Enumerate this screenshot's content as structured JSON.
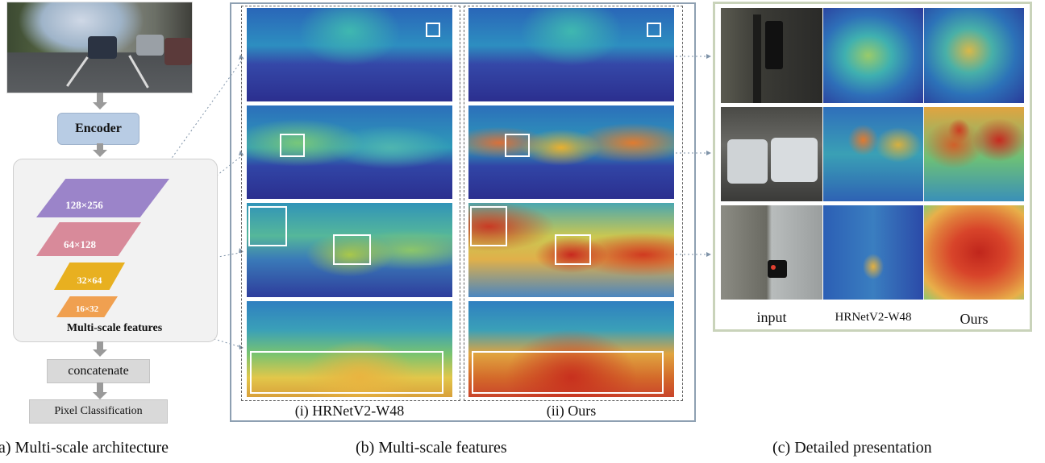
{
  "architecture": {
    "encoder_label": "Encoder",
    "feature_scales": [
      "128×256",
      "64×128",
      "32×64",
      "16×32"
    ],
    "multi_scale_label": "Multi-scale features",
    "concatenate_label": "concatenate",
    "pixel_classification_label": "Pixel Classification",
    "caption": "a) Multi-scale architecture"
  },
  "features": {
    "column_labels": [
      "(i) HRNetV2-W48",
      "(ii) Ours"
    ],
    "caption": "(b) Multi-scale features"
  },
  "detail": {
    "column_labels": [
      "input",
      "HRNetV2-W48",
      "Ours"
    ],
    "caption": "(c) Detailed presentation"
  },
  "colors": {
    "encoder": "#b8cce4",
    "scale_1": "#9b84c9",
    "scale_2": "#d88a9a",
    "scale_3": "#e8b020",
    "scale_4": "#f0a050",
    "panel_border_b": "#8ea0b2",
    "panel_border_c": "#c9d3ba"
  }
}
